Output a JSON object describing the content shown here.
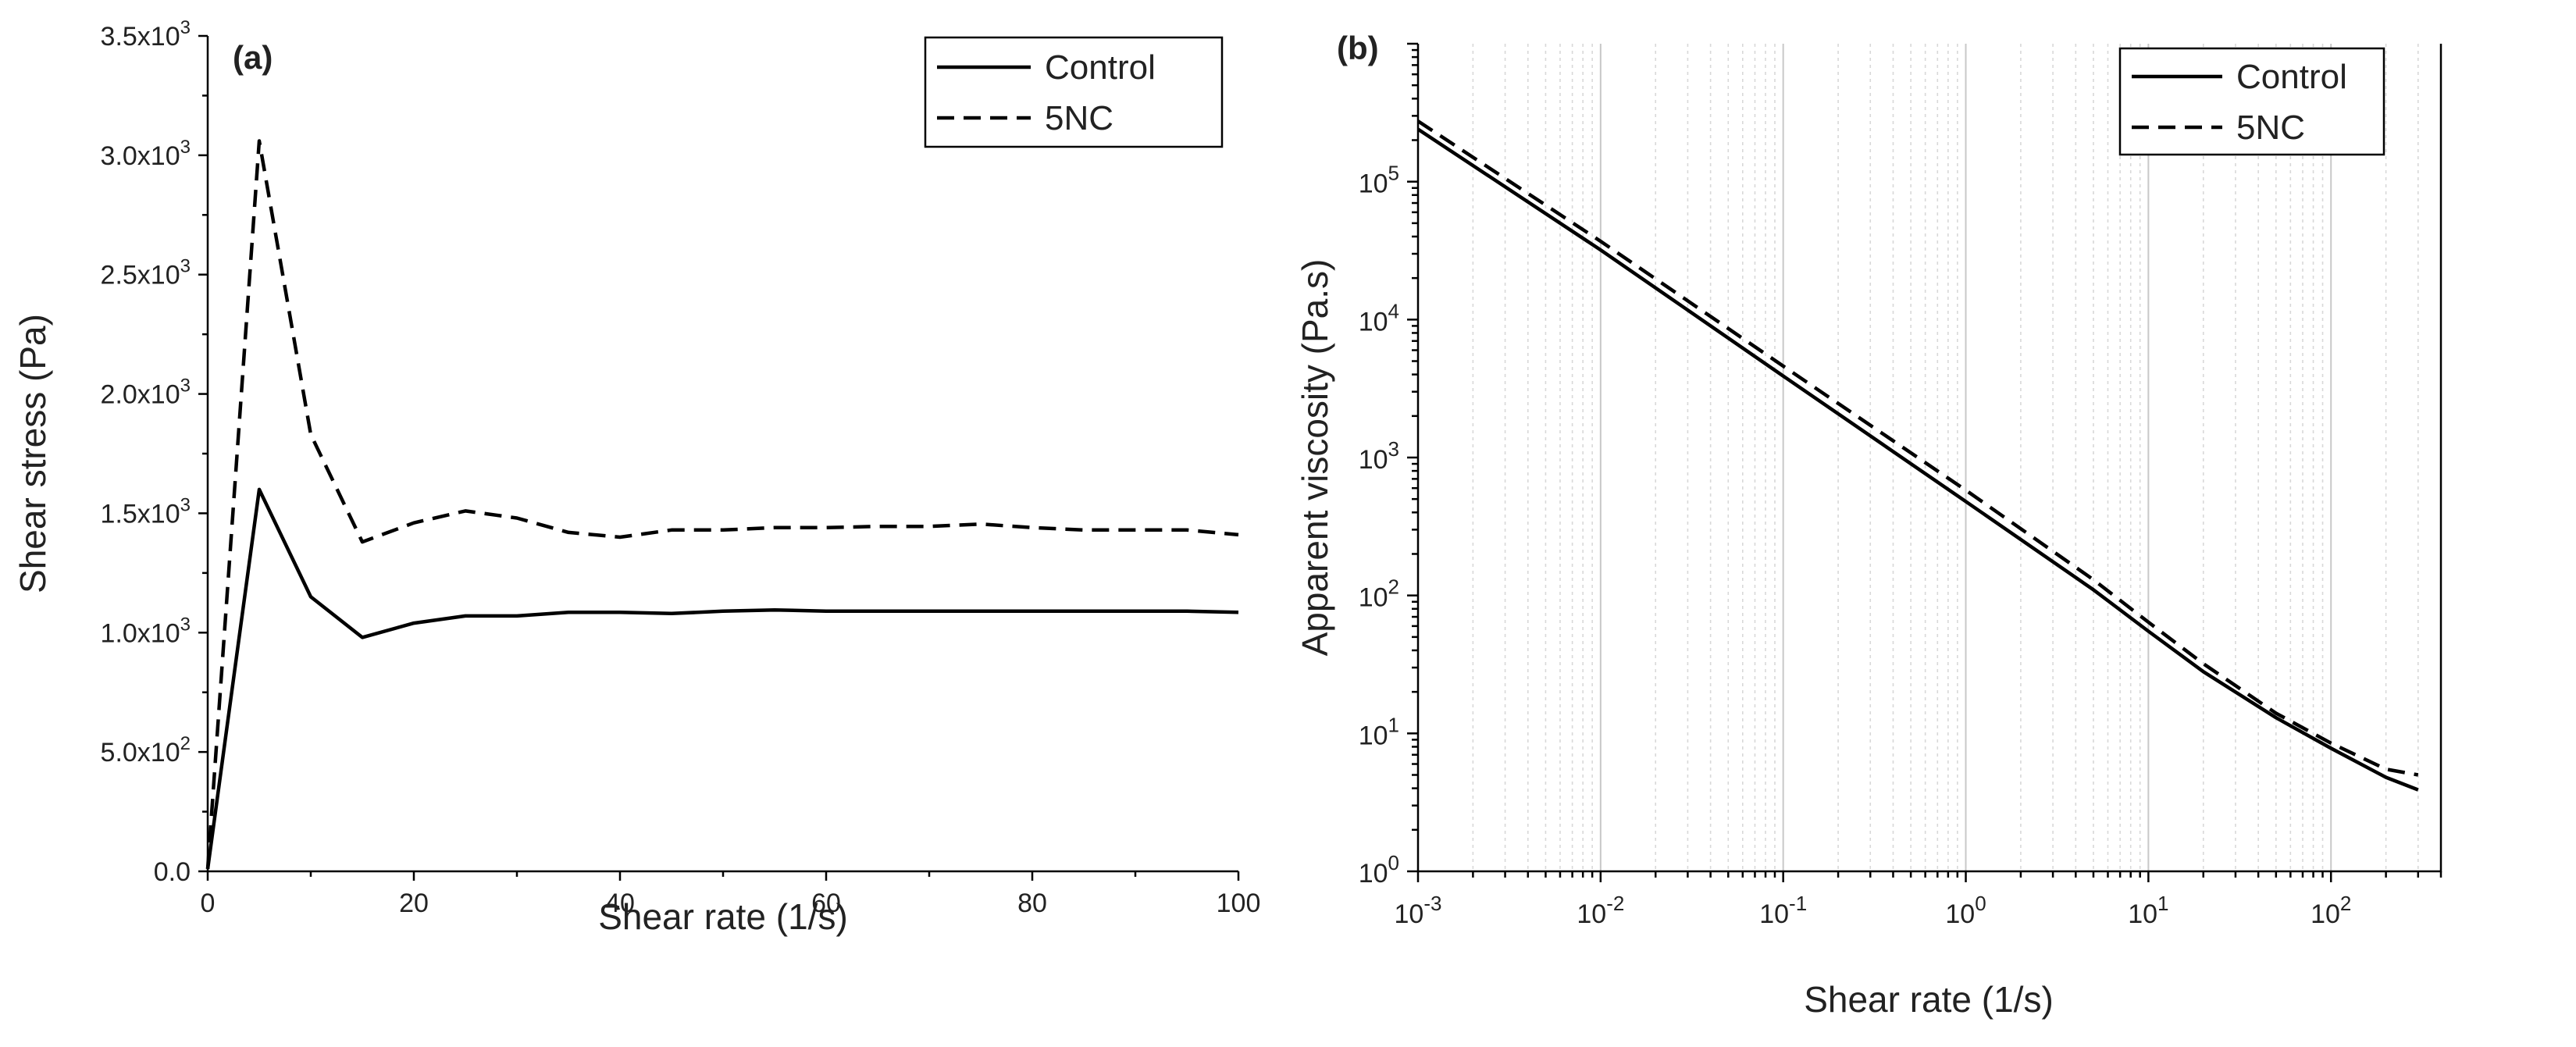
{
  "chart_data": [
    {
      "type": "line",
      "panel_label": "(a)",
      "xlabel": "Shear rate (1/s)",
      "ylabel": "Shear stress (Pa)",
      "xlim": [
        0,
        100
      ],
      "ylim": [
        0,
        3500
      ],
      "grid": false,
      "legend_position": "top-right",
      "x_ticks": [
        0,
        20,
        40,
        60,
        80,
        100
      ],
      "x_tick_labels": [
        "0",
        "20",
        "40",
        "60",
        "80",
        "100"
      ],
      "y_ticks": [
        0,
        500,
        1000,
        1500,
        2000,
        2500,
        3000,
        3500
      ],
      "y_tick_labels": [
        {
          "mantissa": "0.0",
          "exp": ""
        },
        {
          "mantissa": "5.0x10",
          "exp": "2"
        },
        {
          "mantissa": "1.0x10",
          "exp": "3"
        },
        {
          "mantissa": "1.5x10",
          "exp": "3"
        },
        {
          "mantissa": "2.0x10",
          "exp": "3"
        },
        {
          "mantissa": "2.5x10",
          "exp": "3"
        },
        {
          "mantissa": "3.0x10",
          "exp": "3"
        },
        {
          "mantissa": "3.5x10",
          "exp": "3"
        }
      ],
      "series": [
        {
          "name": "Control",
          "style": "solid",
          "x": [
            0,
            5,
            10,
            15,
            20,
            25,
            30,
            35,
            40,
            45,
            50,
            55,
            60,
            65,
            70,
            75,
            80,
            85,
            90,
            95,
            100
          ],
          "y": [
            10,
            1600,
            1150,
            980,
            1040,
            1070,
            1070,
            1085,
            1085,
            1080,
            1090,
            1095,
            1090,
            1090,
            1090,
            1090,
            1090,
            1090,
            1090,
            1090,
            1085
          ]
        },
        {
          "name": "5NC",
          "style": "dashed",
          "x": [
            0,
            5,
            10,
            15,
            20,
            25,
            30,
            35,
            40,
            45,
            50,
            55,
            60,
            65,
            70,
            75,
            80,
            85,
            90,
            95,
            100
          ],
          "y": [
            10,
            3060,
            1830,
            1380,
            1460,
            1510,
            1480,
            1420,
            1400,
            1430,
            1430,
            1440,
            1440,
            1445,
            1445,
            1455,
            1440,
            1430,
            1430,
            1430,
            1410
          ]
        }
      ]
    },
    {
      "type": "line",
      "panel_label": "(b)",
      "xlabel": "Shear rate (1/s)",
      "ylabel": "Apparent viscosity (Pa.s)",
      "xscale": "log",
      "yscale": "log",
      "xlim": [
        0.001,
        400
      ],
      "ylim": [
        1,
        1000000
      ],
      "grid": true,
      "legend_position": "top-right",
      "x_tick_labels": [
        {
          "base": "10",
          "exp": "-3"
        },
        {
          "base": "10",
          "exp": "-2"
        },
        {
          "base": "10",
          "exp": "-1"
        },
        {
          "base": "10",
          "exp": "0"
        },
        {
          "base": "10",
          "exp": "1"
        },
        {
          "base": "10",
          "exp": "2"
        }
      ],
      "y_tick_labels": [
        {
          "base": "10",
          "exp": "0"
        },
        {
          "base": "10",
          "exp": "1"
        },
        {
          "base": "10",
          "exp": "2"
        },
        {
          "base": "10",
          "exp": "3"
        },
        {
          "base": "10",
          "exp": "4"
        },
        {
          "base": "10",
          "exp": "5"
        }
      ],
      "series": [
        {
          "name": "Control",
          "style": "solid",
          "x": [
            0.001,
            0.01,
            0.1,
            1,
            5,
            10,
            20,
            50,
            100,
            200,
            300
          ],
          "y": [
            240000,
            32000,
            3900,
            480,
            110,
            55,
            28,
            13,
            7.8,
            4.8,
            3.9
          ]
        },
        {
          "name": "5NC",
          "style": "dashed",
          "x": [
            0.001,
            0.01,
            0.1,
            1,
            5,
            10,
            20,
            50,
            100,
            200,
            300
          ],
          "y": [
            275000,
            37000,
            4600,
            580,
            130,
            64,
            32,
            14,
            8.5,
            5.5,
            5.0
          ]
        }
      ]
    }
  ]
}
